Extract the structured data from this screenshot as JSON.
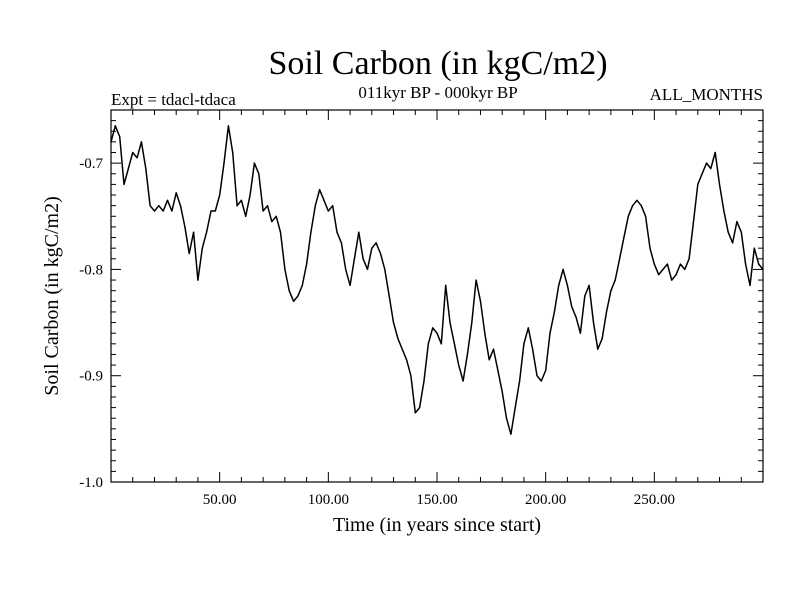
{
  "chart_data": {
    "type": "line",
    "title": "Soil Carbon (in kgC/m2)",
    "subtitle_left": "Expt = tdacl-tdaca",
    "subtitle_center": "011kyr BP - 000kyr BP",
    "subtitle_right": "ALL_MONTHS",
    "xlabel": "Time (in years since start)",
    "ylabel": "Soil Carbon (in kgC/m2)",
    "xlim": [
      0,
      300
    ],
    "ylim": [
      -1.0,
      -0.65
    ],
    "x_ticks": [
      50,
      100,
      150,
      200,
      250
    ],
    "x_tick_labels": [
      "50.00",
      "100.00",
      "150.00",
      "200.00",
      "250.00"
    ],
    "y_ticks": [
      -1.0,
      -0.9,
      -0.8,
      -0.7
    ],
    "y_tick_labels": [
      "-1.0",
      "-0.9",
      "-0.8",
      "-0.7"
    ],
    "grid": false,
    "series": [
      {
        "name": "Soil Carbon",
        "color": "#000000",
        "points": [
          [
            0,
            -0.68
          ],
          [
            2,
            -0.665
          ],
          [
            4,
            -0.675
          ],
          [
            6,
            -0.72
          ],
          [
            8,
            -0.705
          ],
          [
            10,
            -0.69
          ],
          [
            12,
            -0.695
          ],
          [
            14,
            -0.68
          ],
          [
            16,
            -0.705
          ],
          [
            18,
            -0.74
          ],
          [
            20,
            -0.745
          ],
          [
            22,
            -0.74
          ],
          [
            24,
            -0.745
          ],
          [
            26,
            -0.735
          ],
          [
            28,
            -0.745
          ],
          [
            30,
            -0.728
          ],
          [
            32,
            -0.74
          ],
          [
            34,
            -0.76
          ],
          [
            36,
            -0.785
          ],
          [
            38,
            -0.765
          ],
          [
            40,
            -0.81
          ],
          [
            42,
            -0.78
          ],
          [
            44,
            -0.765
          ],
          [
            46,
            -0.745
          ],
          [
            48,
            -0.745
          ],
          [
            50,
            -0.73
          ],
          [
            52,
            -0.7
          ],
          [
            54,
            -0.665
          ],
          [
            56,
            -0.69
          ],
          [
            58,
            -0.74
          ],
          [
            60,
            -0.735
          ],
          [
            62,
            -0.75
          ],
          [
            64,
            -0.73
          ],
          [
            66,
            -0.7
          ],
          [
            68,
            -0.71
          ],
          [
            70,
            -0.745
          ],
          [
            72,
            -0.74
          ],
          [
            74,
            -0.755
          ],
          [
            76,
            -0.75
          ],
          [
            78,
            -0.765
          ],
          [
            80,
            -0.8
          ],
          [
            82,
            -0.82
          ],
          [
            84,
            -0.83
          ],
          [
            86,
            -0.825
          ],
          [
            88,
            -0.815
          ],
          [
            90,
            -0.795
          ],
          [
            92,
            -0.765
          ],
          [
            94,
            -0.74
          ],
          [
            96,
            -0.725
          ],
          [
            98,
            -0.735
          ],
          [
            100,
            -0.745
          ],
          [
            102,
            -0.74
          ],
          [
            104,
            -0.765
          ],
          [
            106,
            -0.775
          ],
          [
            108,
            -0.8
          ],
          [
            110,
            -0.815
          ],
          [
            112,
            -0.79
          ],
          [
            114,
            -0.765
          ],
          [
            116,
            -0.79
          ],
          [
            118,
            -0.8
          ],
          [
            120,
            -0.78
          ],
          [
            122,
            -0.775
          ],
          [
            124,
            -0.785
          ],
          [
            126,
            -0.8
          ],
          [
            128,
            -0.825
          ],
          [
            130,
            -0.85
          ],
          [
            132,
            -0.865
          ],
          [
            134,
            -0.875
          ],
          [
            136,
            -0.885
          ],
          [
            138,
            -0.9
          ],
          [
            140,
            -0.935
          ],
          [
            142,
            -0.93
          ],
          [
            144,
            -0.905
          ],
          [
            146,
            -0.87
          ],
          [
            148,
            -0.855
          ],
          [
            150,
            -0.86
          ],
          [
            152,
            -0.87
          ],
          [
            154,
            -0.815
          ],
          [
            156,
            -0.85
          ],
          [
            158,
            -0.87
          ],
          [
            160,
            -0.89
          ],
          [
            162,
            -0.905
          ],
          [
            164,
            -0.88
          ],
          [
            166,
            -0.85
          ],
          [
            168,
            -0.81
          ],
          [
            170,
            -0.83
          ],
          [
            172,
            -0.86
          ],
          [
            174,
            -0.885
          ],
          [
            176,
            -0.875
          ],
          [
            178,
            -0.895
          ],
          [
            180,
            -0.915
          ],
          [
            182,
            -0.94
          ],
          [
            184,
            -0.955
          ],
          [
            186,
            -0.93
          ],
          [
            188,
            -0.905
          ],
          [
            190,
            -0.87
          ],
          [
            192,
            -0.855
          ],
          [
            194,
            -0.875
          ],
          [
            196,
            -0.9
          ],
          [
            198,
            -0.905
          ],
          [
            200,
            -0.895
          ],
          [
            202,
            -0.86
          ],
          [
            204,
            -0.84
          ],
          [
            206,
            -0.815
          ],
          [
            208,
            -0.8
          ],
          [
            210,
            -0.815
          ],
          [
            212,
            -0.835
          ],
          [
            214,
            -0.845
          ],
          [
            216,
            -0.86
          ],
          [
            218,
            -0.825
          ],
          [
            220,
            -0.815
          ],
          [
            222,
            -0.85
          ],
          [
            224,
            -0.875
          ],
          [
            226,
            -0.865
          ],
          [
            228,
            -0.84
          ],
          [
            230,
            -0.82
          ],
          [
            232,
            -0.81
          ],
          [
            234,
            -0.79
          ],
          [
            236,
            -0.77
          ],
          [
            238,
            -0.75
          ],
          [
            240,
            -0.74
          ],
          [
            242,
            -0.735
          ],
          [
            244,
            -0.74
          ],
          [
            246,
            -0.75
          ],
          [
            248,
            -0.78
          ],
          [
            250,
            -0.795
          ],
          [
            252,
            -0.805
          ],
          [
            254,
            -0.8
          ],
          [
            256,
            -0.795
          ],
          [
            258,
            -0.81
          ],
          [
            260,
            -0.805
          ],
          [
            262,
            -0.795
          ],
          [
            264,
            -0.8
          ],
          [
            266,
            -0.79
          ],
          [
            268,
            -0.755
          ],
          [
            270,
            -0.72
          ],
          [
            272,
            -0.71
          ],
          [
            274,
            -0.7
          ],
          [
            276,
            -0.705
          ],
          [
            278,
            -0.69
          ],
          [
            280,
            -0.72
          ],
          [
            282,
            -0.745
          ],
          [
            284,
            -0.765
          ],
          [
            286,
            -0.775
          ],
          [
            288,
            -0.755
          ],
          [
            290,
            -0.765
          ],
          [
            292,
            -0.795
          ],
          [
            294,
            -0.815
          ],
          [
            296,
            -0.78
          ],
          [
            298,
            -0.795
          ],
          [
            300,
            -0.8
          ]
        ]
      }
    ]
  }
}
